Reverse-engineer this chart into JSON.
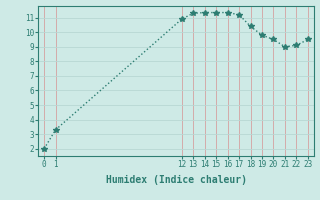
{
  "x": [
    0,
    1,
    12,
    13,
    14,
    15,
    16,
    17,
    18,
    19,
    20,
    21,
    22,
    23
  ],
  "y": [
    2.0,
    3.3,
    10.9,
    11.3,
    11.35,
    11.35,
    11.35,
    11.2,
    10.4,
    9.8,
    9.5,
    9.0,
    9.1,
    9.5
  ],
  "xticks": [
    0,
    1,
    12,
    13,
    14,
    15,
    16,
    17,
    18,
    19,
    20,
    21,
    22,
    23
  ],
  "yticks": [
    2,
    3,
    4,
    5,
    6,
    7,
    8,
    9,
    10,
    11
  ],
  "ylim": [
    1.5,
    11.8
  ],
  "xlim": [
    -0.5,
    23.5
  ],
  "xlabel": "Humidex (Indice chaleur)",
  "line_color": "#2d7d72",
  "bg_color": "#ceeae6",
  "grid_color_h": "#b8d8d4",
  "grid_color_v": "#d4a0a0",
  "marker": "*",
  "marker_size": 4,
  "line_width": 1.0,
  "tick_fontsize": 5.5,
  "xlabel_fontsize": 7.0
}
